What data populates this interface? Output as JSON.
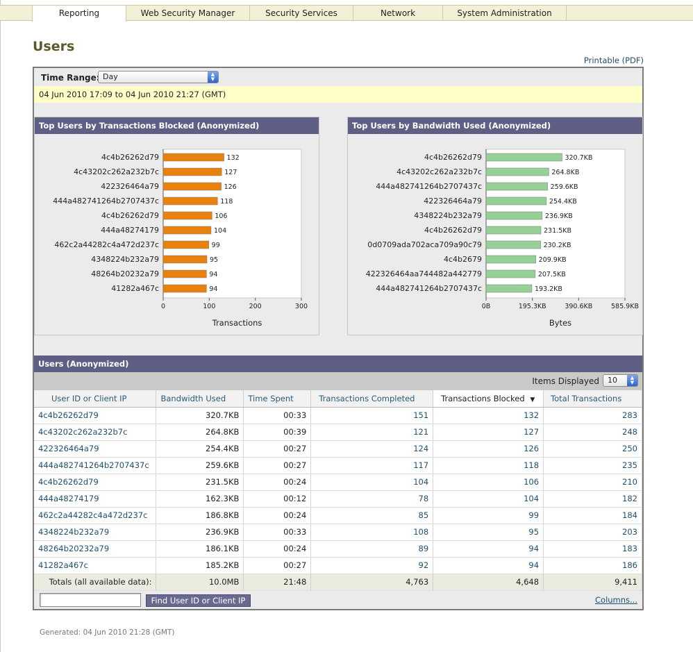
{
  "nav": {
    "tabs": [
      "Reporting",
      "Web Security Manager",
      "Security Services",
      "Network",
      "System Administration"
    ],
    "active": "Reporting"
  },
  "page": {
    "title": "Users",
    "printable": "Printable (PDF)",
    "time_range_label": "Time Range:",
    "time_range_value": "Day",
    "date_range": "04 Jun 2010 17:09 to 04 Jun 2010 21:27 (GMT)",
    "generated": "Generated: 04 Jun 2010 21:28 (GMT)"
  },
  "colors": {
    "header_bg": "#5f5f85",
    "bar_orange": "#e8820c",
    "bar_green": "#96d096",
    "date_band": "#ffffc8"
  },
  "chart_data": [
    {
      "type": "bar",
      "orientation": "horizontal",
      "title": "Top Users by Transactions Blocked (Anonymized)",
      "xlabel": "Transactions",
      "xlim": [
        0,
        300
      ],
      "ticks": [
        "0",
        "100",
        "200",
        "300"
      ],
      "categories": [
        "4c4b26262d79",
        "4c43202c262a232b7c",
        "422326464a79",
        "444a482741264b2707437c",
        "4c4b26262d79",
        "444a48274179",
        "462c2a44282c4a472d237c",
        "4348224b232a79",
        "48264b20232a79",
        "41282a467c"
      ],
      "values": [
        132,
        127,
        126,
        118,
        106,
        104,
        99,
        95,
        94,
        94
      ],
      "labels": [
        "132",
        "127",
        "126",
        "118",
        "106",
        "104",
        "99",
        "95",
        "94",
        "94"
      ],
      "color": "#e8820c"
    },
    {
      "type": "bar",
      "orientation": "horizontal",
      "title": "Top Users by Bandwidth Used (Anonymized)",
      "xlabel": "Bytes",
      "xlim": [
        0,
        585.9
      ],
      "ticks": [
        "0B",
        "195.3KB",
        "390.6KB",
        "585.9KB"
      ],
      "categories": [
        "4c4b26262d79",
        "4c43202c262a232b7c",
        "444a482741264b2707437c",
        "422326464a79",
        "4348224b232a79",
        "4c4b26262d79",
        "0d0709ada702aca709a90c79",
        "4c4b2679",
        "422326464aa744482a442779",
        "444a482741264b2707437c"
      ],
      "values": [
        320.7,
        264.8,
        259.6,
        254.4,
        236.9,
        231.5,
        230.2,
        209.9,
        207.5,
        193.2
      ],
      "labels": [
        "320.7KB",
        "264.8KB",
        "259.6KB",
        "254.4KB",
        "236.9KB",
        "231.5KB",
        "230.2KB",
        "209.9KB",
        "207.5KB",
        "193.2KB"
      ],
      "color": "#96d096"
    }
  ],
  "users": {
    "title": "Users (Anonymized)",
    "items_displayed_label": "Items Displayed",
    "items_displayed_value": "10",
    "columns": [
      "User ID or Client IP",
      "Bandwidth Used",
      "Time Spent",
      "Transactions Completed",
      "Transactions Blocked",
      "Total Transactions"
    ],
    "rows": [
      [
        "4c4b26262d79",
        "320.7KB",
        "00:33",
        "151",
        "132",
        "283"
      ],
      [
        "4c43202c262a232b7c",
        "264.8KB",
        "00:39",
        "121",
        "127",
        "248"
      ],
      [
        "422326464a79",
        "254.4KB",
        "00:27",
        "124",
        "126",
        "250"
      ],
      [
        "444a482741264b2707437c",
        "259.6KB",
        "00:27",
        "117",
        "118",
        "235"
      ],
      [
        "4c4b26262d79",
        "231.5KB",
        "00:24",
        "104",
        "106",
        "210"
      ],
      [
        "444a48274179",
        "162.3KB",
        "00:12",
        "78",
        "104",
        "182"
      ],
      [
        "462c2a44282c4a472d237c",
        "186.8KB",
        "00:24",
        "85",
        "99",
        "184"
      ],
      [
        "4348224b232a79",
        "236.9KB",
        "00:33",
        "108",
        "95",
        "203"
      ],
      [
        "48264b20232a79",
        "186.1KB",
        "00:24",
        "89",
        "94",
        "183"
      ],
      [
        "41282a467c",
        "185.2KB",
        "00:27",
        "92",
        "94",
        "186"
      ]
    ],
    "totals": [
      "Totals (all available data):",
      "10.0MB",
      "21:48",
      "4,763",
      "4,648",
      "9,411"
    ],
    "find_button": "Find User ID or Client IP",
    "find_value": "",
    "columns_link": "Columns..."
  }
}
